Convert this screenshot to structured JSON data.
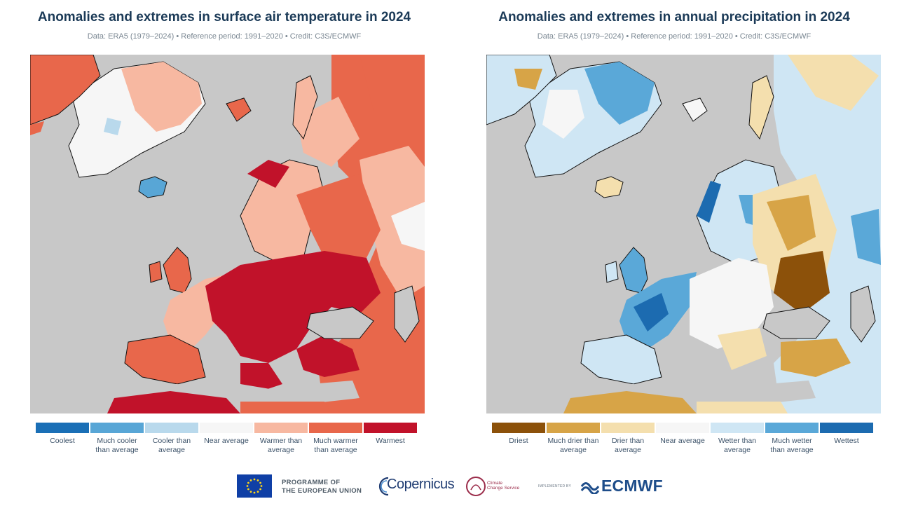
{
  "panels": [
    {
      "title": "Anomalies and extremes in surface air temperature in 2024",
      "subtitle": "Data: ERA5 (1979–2024) • Reference period: 1991–2020 • Credit: C3S/ECMWF",
      "legend": [
        {
          "label": "Coolest",
          "color": "#1a6fb6"
        },
        {
          "label": "Much cooler than average",
          "color": "#58a6d6"
        },
        {
          "label": "Cooler than average",
          "color": "#b9d9ec"
        },
        {
          "label": "Near average",
          "color": "#f6f6f6"
        },
        {
          "label": "Warmer than average",
          "color": "#f7b8a1"
        },
        {
          "label": "Much warmer than average",
          "color": "#e8674b"
        },
        {
          "label": "Warmest",
          "color": "#c1122a"
        }
      ]
    },
    {
      "title": "Anomalies and extremes in annual precipitation in 2024",
      "subtitle": "Data: ERA5 (1979–2024) • Reference period: 1991–2020 • Credit: C3S/ECMWF",
      "legend": [
        {
          "label": "Driest",
          "color": "#8c510a"
        },
        {
          "label": "Much drier than average",
          "color": "#d7a447"
        },
        {
          "label": "Drier than average",
          "color": "#f4dfae"
        },
        {
          "label": "Near average",
          "color": "#f6f6f6"
        },
        {
          "label": "Wetter than average",
          "color": "#cfe6f4"
        },
        {
          "label": "Much wetter than average",
          "color": "#5aa8d8"
        },
        {
          "label": "Wettest",
          "color": "#1c6bb0"
        }
      ]
    }
  ],
  "colors": {
    "ocean": "#c8c8c8",
    "title": "#1b3a57"
  },
  "footer": {
    "eu_line1": "PROGRAMME OF",
    "eu_line2": "THE EUROPEAN UNION",
    "copernicus": "Copernicus",
    "c3s_line1": "Climate",
    "c3s_line2": "Change Service",
    "implemented_by": "IMPLEMENTED BY",
    "ecmwf": "ECMWF"
  }
}
